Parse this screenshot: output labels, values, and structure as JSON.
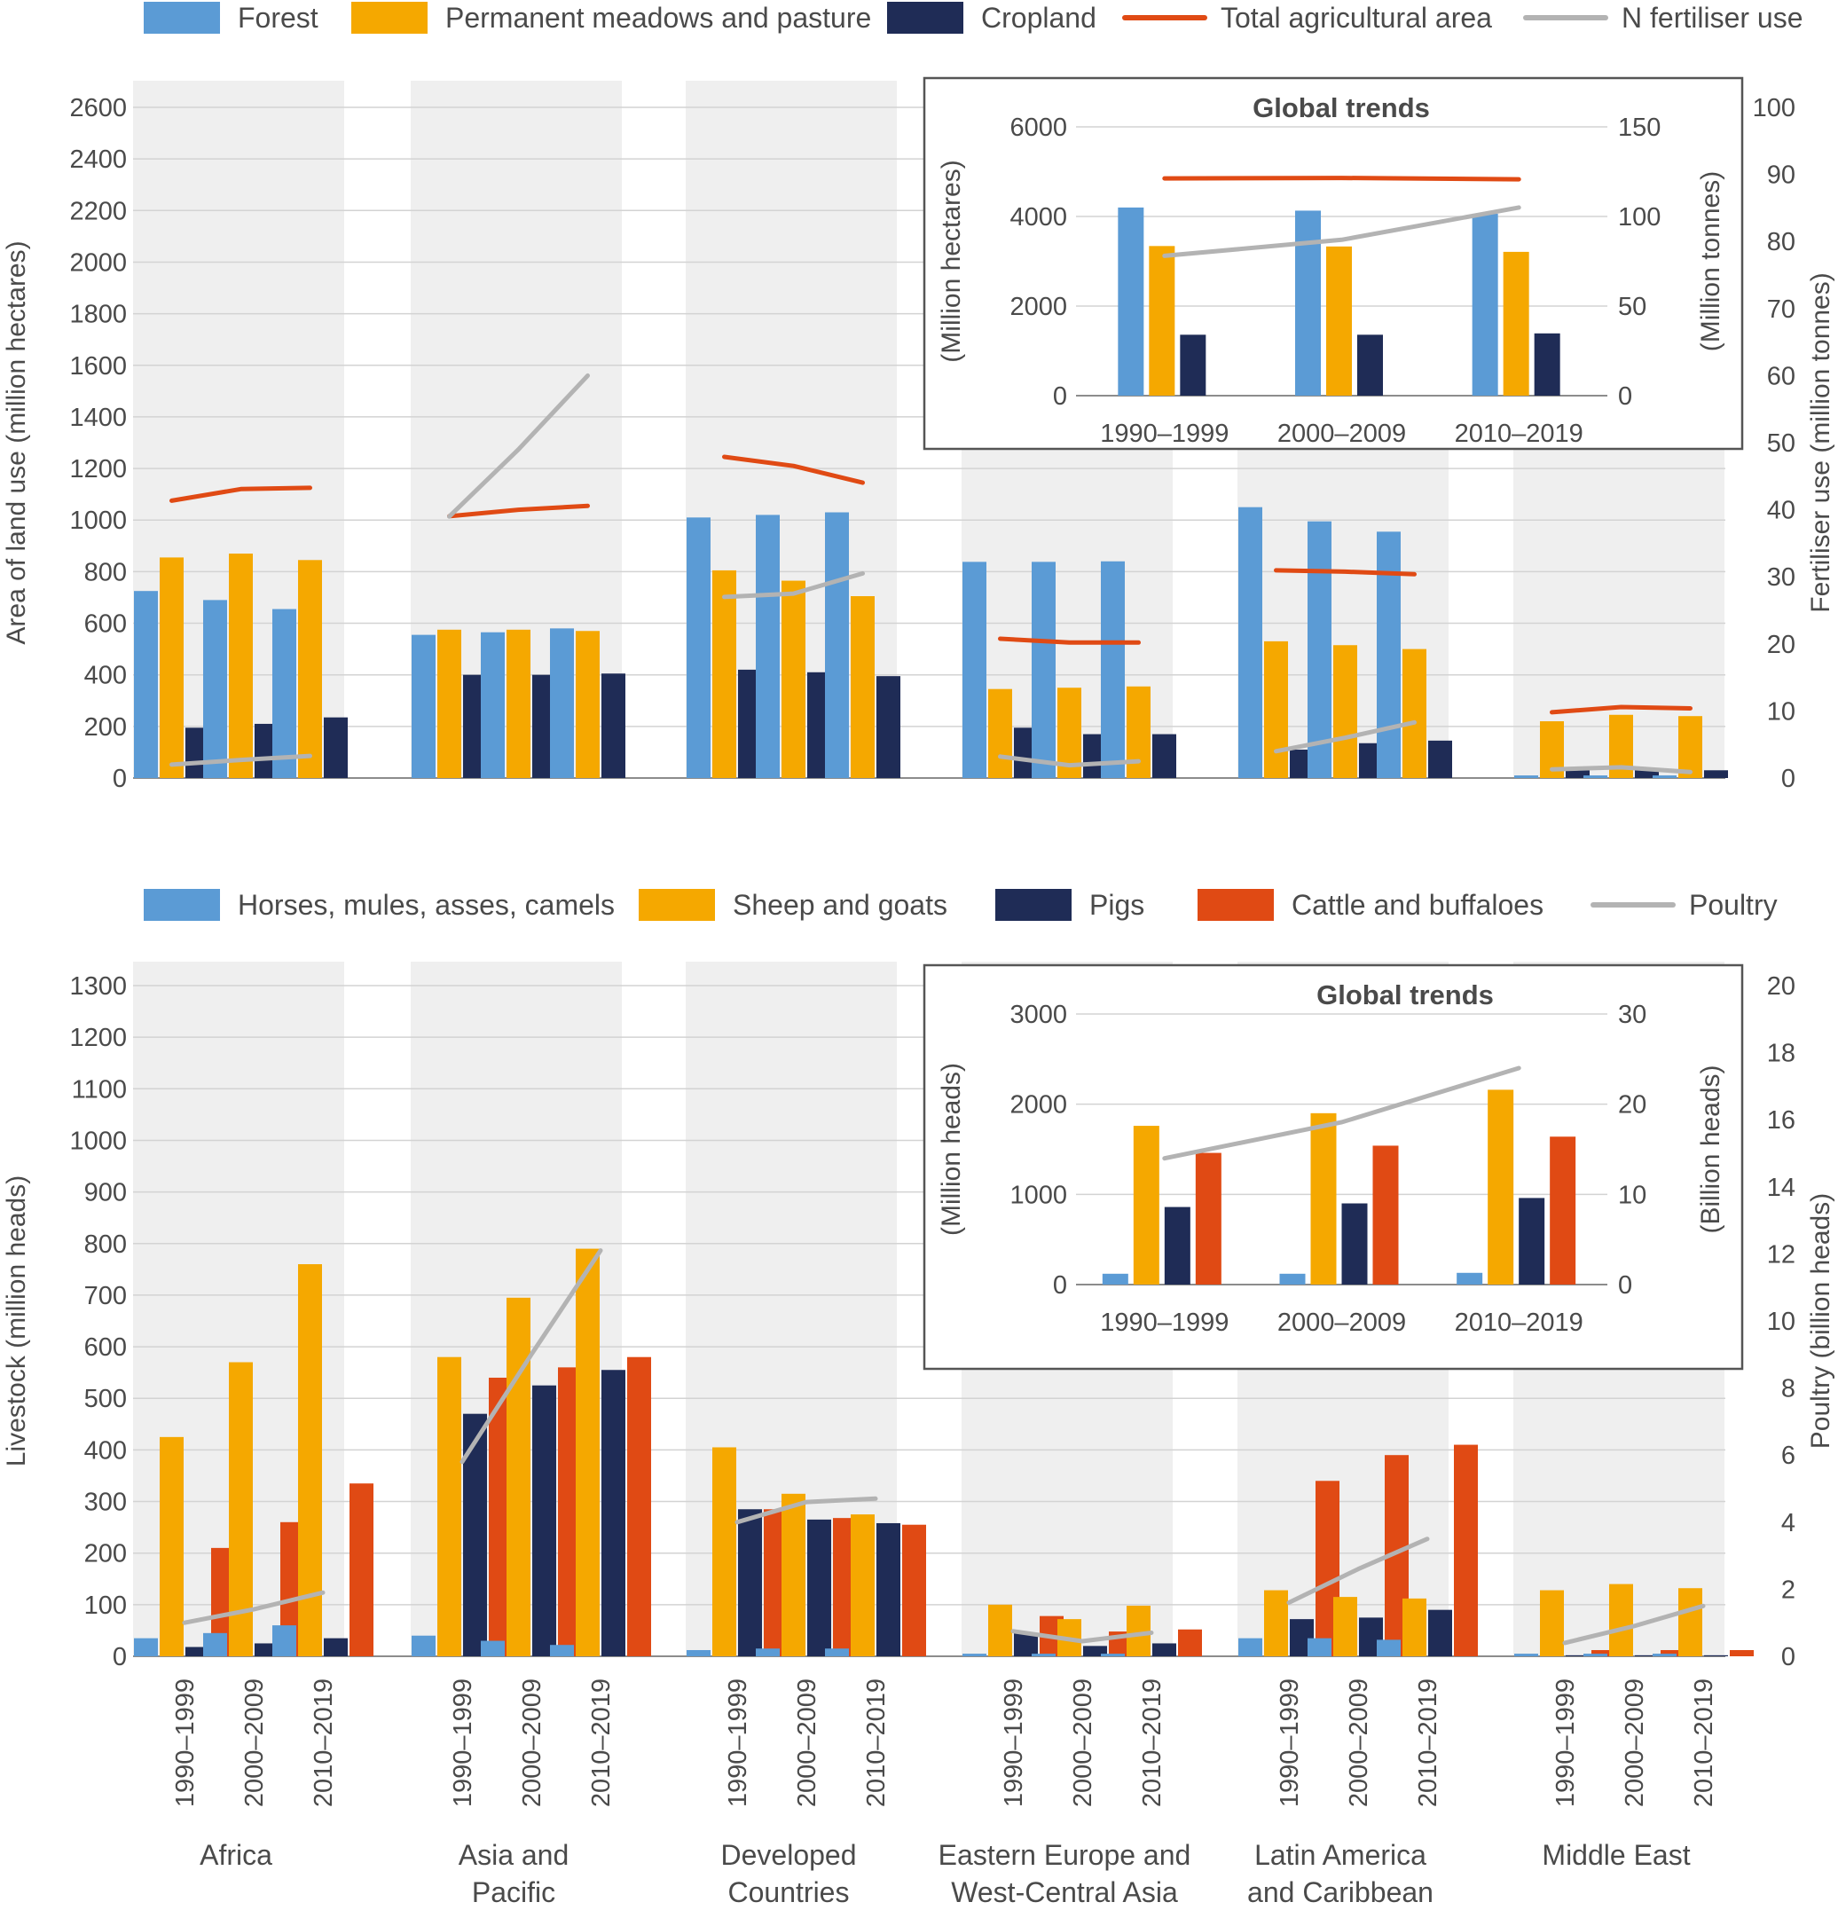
{
  "chart_data": [
    {
      "type": "bar",
      "name": "land-use",
      "categories": [
        "Africa",
        "Asia and Pacific",
        "Developed Countries",
        "Eastern Europe and West-Central Asia",
        "Latin America and Caribbean",
        "Middle East"
      ],
      "periods": [
        "1990–1999",
        "2000–2009",
        "2010–2019"
      ],
      "legend": [
        {
          "key": "forest",
          "label": "Forest",
          "kind": "bar",
          "color": "#5b9bd5"
        },
        {
          "key": "pasture",
          "label": "Permanent meadows and pasture",
          "kind": "bar",
          "color": "#f5a800"
        },
        {
          "key": "cropland",
          "label": "Cropland",
          "kind": "bar",
          "color": "#1f2c56"
        },
        {
          "key": "agri",
          "label": "Total agricultural area",
          "kind": "line",
          "color": "#e04a14"
        },
        {
          "key": "fert",
          "label": "N fertiliser use",
          "kind": "line",
          "color": "#b3b3b3"
        }
      ],
      "ylabel": "Area of land use (million hectares)",
      "ylim": [
        0,
        2600
      ],
      "yticks": [
        0,
        200,
        400,
        600,
        800,
        1000,
        1200,
        1400,
        1600,
        1800,
        2000,
        2200,
        2400,
        2600
      ],
      "y2label": "Fertiliser use   (million tonnes)",
      "y2lim": [
        0,
        100
      ],
      "y2ticks": [
        0,
        10,
        20,
        30,
        40,
        50,
        60,
        70,
        80,
        90,
        100
      ],
      "series": {
        "forest": [
          [
            725,
            690,
            655
          ],
          [
            555,
            565,
            580
          ],
          [
            1010,
            1020,
            1030
          ],
          [
            838,
            838,
            840
          ],
          [
            1050,
            995,
            955
          ],
          [
            10,
            10,
            10
          ]
        ],
        "pasture": [
          [
            855,
            870,
            845
          ],
          [
            575,
            575,
            570
          ],
          [
            805,
            765,
            705
          ],
          [
            345,
            350,
            355
          ],
          [
            530,
            515,
            500
          ],
          [
            220,
            245,
            240
          ]
        ],
        "cropland": [
          [
            195,
            210,
            235
          ],
          [
            400,
            400,
            405
          ],
          [
            420,
            410,
            395
          ],
          [
            195,
            170,
            170
          ],
          [
            110,
            135,
            145
          ],
          [
            30,
            30,
            30
          ]
        ],
        "agri": [
          [
            1075,
            1120,
            1125
          ],
          [
            1015,
            1040,
            1055
          ],
          [
            1245,
            1210,
            1145
          ],
          [
            540,
            525,
            525
          ],
          [
            805,
            800,
            790
          ],
          [
            255,
            275,
            270
          ]
        ],
        "fert": [
          [
            2.0,
            2.7,
            3.3
          ],
          [
            39,
            49,
            60
          ],
          [
            27,
            27.5,
            30.5
          ],
          [
            3.2,
            1.9,
            2.5
          ],
          [
            4.0,
            6.0,
            8.3
          ],
          [
            1.3,
            1.6,
            0.9
          ]
        ]
      },
      "inset": {
        "title": "Global trends",
        "periods": [
          "1990–1999",
          "2000–2009",
          "2010–2019"
        ],
        "ylabel": "(Million hectares)",
        "ylim": [
          0,
          6000
        ],
        "yticks": [
          0,
          2000,
          4000,
          6000
        ],
        "y2label": "(Million tonnes)",
        "y2lim": [
          0,
          150
        ],
        "y2ticks": [
          0,
          50,
          100,
          150
        ],
        "forest": [
          4200,
          4130,
          4060
        ],
        "pasture": [
          3340,
          3330,
          3210
        ],
        "cropland": [
          1360,
          1360,
          1390
        ],
        "agri": [
          4850,
          4860,
          4830
        ],
        "fert": [
          78,
          87,
          105
        ]
      }
    },
    {
      "type": "bar",
      "name": "livestock",
      "categories": [
        "Africa",
        "Asia and Pacific",
        "Developed Countries",
        "Eastern Europe and West-Central Asia",
        "Latin America and Caribbean",
        "Middle East"
      ],
      "category_labels": [
        [
          "Africa"
        ],
        [
          "Asia and",
          "Pacific"
        ],
        [
          "Developed",
          "Countries"
        ],
        [
          "Eastern Europe and",
          "West-Central Asia"
        ],
        [
          "Latin America",
          "and Caribbean"
        ],
        [
          "Middle East"
        ]
      ],
      "periods": [
        "1990–1999",
        "2000–2009",
        "2010–2019"
      ],
      "legend": [
        {
          "key": "horses",
          "label": "Horses, mules, asses, camels",
          "kind": "bar",
          "color": "#5b9bd5"
        },
        {
          "key": "sheep",
          "label": "Sheep and goats",
          "kind": "bar",
          "color": "#f5a800"
        },
        {
          "key": "pigs",
          "label": "Pigs",
          "kind": "bar",
          "color": "#1f2c56"
        },
        {
          "key": "cattle",
          "label": "Cattle and buffaloes",
          "kind": "bar",
          "color": "#e04a14"
        },
        {
          "key": "poultry",
          "label": "Poultry",
          "kind": "line",
          "color": "#b3b3b3"
        }
      ],
      "ylabel": "Livestock (million heads)",
      "ylim": [
        0,
        1300
      ],
      "yticks": [
        0,
        100,
        200,
        300,
        400,
        500,
        600,
        700,
        800,
        900,
        1000,
        1100,
        1200,
        1300
      ],
      "y2label": "Poultry (billion heads)",
      "y2lim": [
        0,
        20
      ],
      "y2ticks": [
        0,
        2,
        4,
        6,
        8,
        10,
        12,
        14,
        16,
        18,
        20
      ],
      "series": {
        "horses": [
          [
            35,
            45,
            60
          ],
          [
            40,
            30,
            22
          ],
          [
            12,
            15,
            15
          ],
          [
            5,
            5,
            5
          ],
          [
            35,
            35,
            32
          ],
          [
            5,
            5,
            5
          ]
        ],
        "sheep": [
          [
            425,
            570,
            760
          ],
          [
            580,
            695,
            790
          ],
          [
            405,
            315,
            275
          ],
          [
            100,
            72,
            98
          ],
          [
            128,
            115,
            112
          ],
          [
            128,
            140,
            132
          ]
        ],
        "pigs": [
          [
            18,
            25,
            35
          ],
          [
            470,
            525,
            555
          ],
          [
            285,
            265,
            258
          ],
          [
            45,
            20,
            25
          ],
          [
            72,
            75,
            90
          ],
          [
            2,
            2,
            2
          ]
        ],
        "cattle": [
          [
            210,
            260,
            335
          ],
          [
            540,
            560,
            580
          ],
          [
            285,
            268,
            255
          ],
          [
            78,
            48,
            52
          ],
          [
            340,
            390,
            410
          ],
          [
            12,
            12,
            12
          ]
        ],
        "poultry": [
          [
            1.0,
            1.4,
            1.9
          ],
          [
            5.8,
            9.0,
            12.1
          ],
          [
            4.0,
            4.6,
            4.7
          ],
          [
            0.75,
            0.45,
            0.7
          ],
          [
            1.6,
            2.6,
            3.5
          ],
          [
            0.4,
            0.9,
            1.5
          ]
        ]
      },
      "inset": {
        "title": "Global trends",
        "periods": [
          "1990–1999",
          "2000–2009",
          "2010–2019"
        ],
        "ylabel": "(Million heads)",
        "ylim": [
          0,
          3000
        ],
        "yticks": [
          0,
          1000,
          2000,
          3000
        ],
        "y2label": "(Billion heads)",
        "y2lim": [
          0,
          30
        ],
        "y2ticks": [
          0,
          10,
          20,
          30
        ],
        "horses": [
          120,
          120,
          130
        ],
        "sheep": [
          1760,
          1900,
          2160
        ],
        "pigs": [
          860,
          900,
          960
        ],
        "cattle": [
          1460,
          1540,
          1640
        ],
        "poultry": [
          14,
          18,
          24
        ]
      }
    }
  ]
}
